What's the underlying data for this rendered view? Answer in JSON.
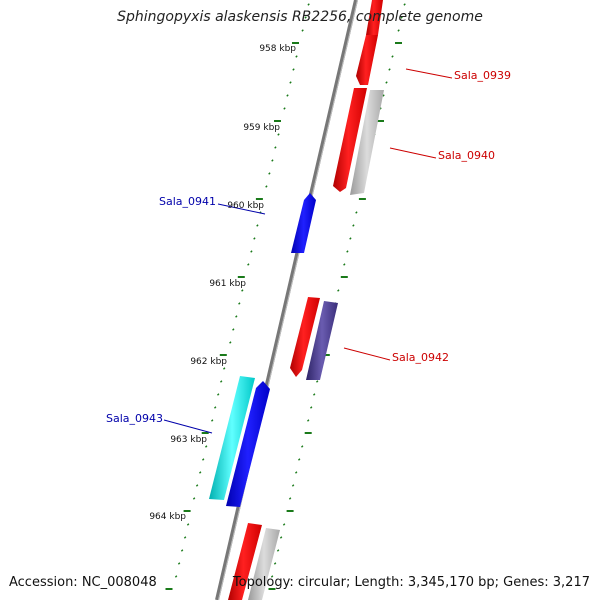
{
  "title": "Sphingopyxis alaskensis RB2256, complete genome",
  "footer": {
    "accession": "Accession: NC_008048",
    "summary": "Topology: circular; Length: 3,345,170 bp; Genes: 3,217"
  },
  "colors": {
    "backbone": "#777777",
    "tick": "#1a7a1a",
    "gene_forward": "#ff0000",
    "gene_forward_other": "#c0c0c0",
    "gene_forward_purple": "#4a3c8c",
    "gene_reverse": "#0000ee",
    "gene_reverse_cyan": "#00e0e0",
    "label_forward": "#cc0000",
    "label_reverse": "#0000aa"
  },
  "ticks": [
    {
      "label": "958 kbp"
    },
    {
      "label": "959 kbp"
    },
    {
      "label": "960 kbp"
    },
    {
      "label": "961 kbp"
    },
    {
      "label": "962 kbp"
    },
    {
      "label": "963 kbp"
    },
    {
      "label": "964 kbp"
    }
  ],
  "genes": [
    {
      "label": "Sala_0939",
      "strand": "forward",
      "color": "#ff0000"
    },
    {
      "label": "Sala_0940",
      "strand": "forward",
      "color": "#ff0000"
    },
    {
      "label": "Sala_0941",
      "strand": "reverse",
      "color": "#0000ee"
    },
    {
      "label": "Sala_0942",
      "strand": "forward",
      "color": "#ff0000"
    },
    {
      "label": "Sala_0943",
      "strand": "reverse",
      "color": "#0000ee"
    }
  ]
}
